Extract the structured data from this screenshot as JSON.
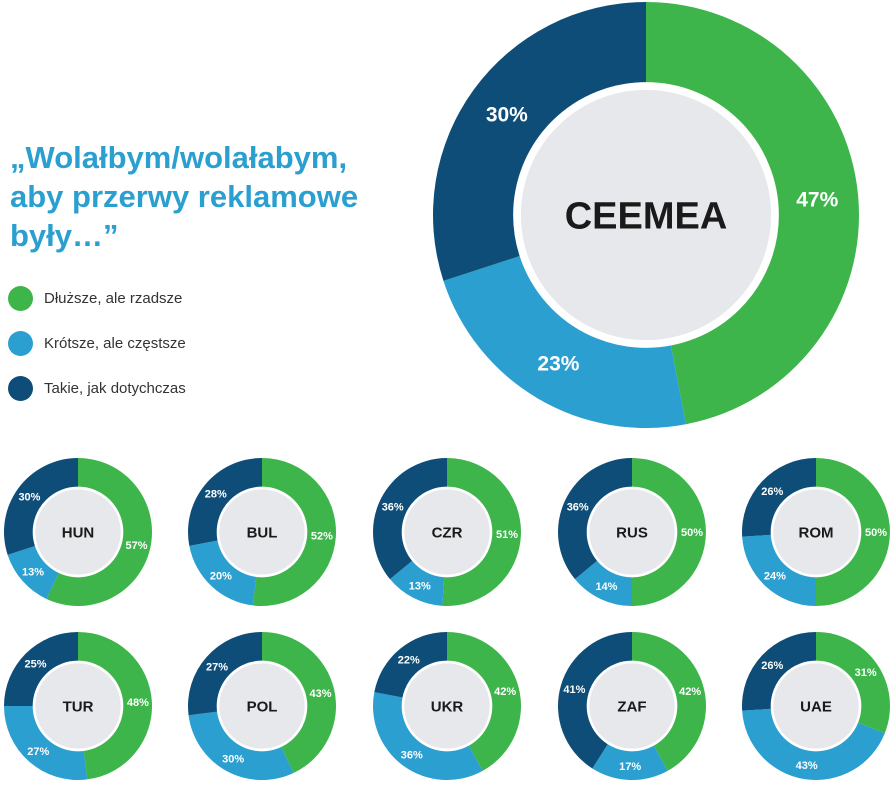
{
  "headline": "„Wolałbym/wolałabym,\naby przerwy reklamowe\nbyły…”",
  "colors": {
    "green": "#3db54a",
    "light_blue": "#2a9fd0",
    "dark_blue": "#0e4d78",
    "center": "#e6e8ec"
  },
  "legend": [
    {
      "label": "Dłuższe, ale rzadsze",
      "color": "#3db54a"
    },
    {
      "label": "Krótsze, ale częstsze",
      "color": "#2a9fd0"
    },
    {
      "label": "Takie, jak dotychczas",
      "color": "#0e4d78"
    }
  ],
  "chart_data": {
    "type": "donut",
    "series_names": [
      "Dłuższe, ale rzadsze",
      "Krótsze, ale częstsze",
      "Takie, jak dotychczas"
    ],
    "unit": "%",
    "main": {
      "label": "CEEMEA",
      "values": [
        47,
        23,
        30
      ]
    },
    "countries": [
      {
        "label": "HUN",
        "values": [
          57,
          13,
          30
        ]
      },
      {
        "label": "BUL",
        "values": [
          52,
          20,
          28
        ]
      },
      {
        "label": "CZR",
        "values": [
          51,
          13,
          36
        ]
      },
      {
        "label": "RUS",
        "values": [
          50,
          14,
          36
        ]
      },
      {
        "label": "ROM",
        "values": [
          50,
          24,
          26
        ]
      },
      {
        "label": "TUR",
        "values": [
          48,
          27,
          25
        ]
      },
      {
        "label": "POL",
        "values": [
          43,
          30,
          27
        ]
      },
      {
        "label": "UKR",
        "values": [
          42,
          36,
          22
        ]
      },
      {
        "label": "ZAF",
        "values": [
          42,
          17,
          41
        ]
      },
      {
        "label": "UAE",
        "values": [
          31,
          43,
          26
        ]
      }
    ]
  }
}
